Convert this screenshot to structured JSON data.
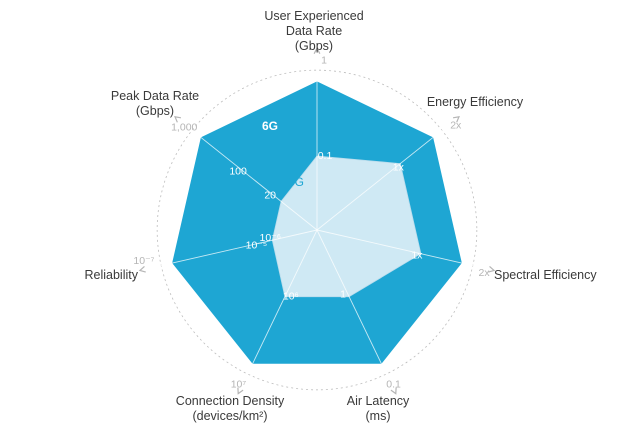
{
  "chart_data": {
    "type": "radar",
    "title": "",
    "axes": [
      {
        "lines": [
          "User Experienced",
          "Data Rate",
          "(Gbps)"
        ],
        "outer_tick": "1",
        "inner_tick": "0.1",
        "value_6g": 1,
        "value_5g": 0.1
      },
      {
        "lines": [
          "Energy Efficiency"
        ],
        "outer_tick": "2x",
        "inner_tick": "1x",
        "value_6g": 2,
        "value_5g": 1
      },
      {
        "lines": [
          "Spectral Efficiency"
        ],
        "outer_tick": "2x",
        "inner_tick": "1x",
        "value_6g": 2,
        "value_5g": 1
      },
      {
        "lines": [
          "Air Latency",
          "(ms)"
        ],
        "outer_tick": "0.1",
        "inner_tick": "1",
        "value_6g": 0.1,
        "value_5g": 1
      },
      {
        "lines": [
          "Connection Density",
          "(devices/km²)"
        ],
        "outer_tick": "10⁷",
        "inner_tick": "10⁶",
        "value_6g": 10000000,
        "value_5g": 1000000
      },
      {
        "lines": [
          "Reliability"
        ],
        "outer_tick": "10⁻⁷",
        "inner_tick": "10⁻⁶",
        "value_6g": "10⁻⁷",
        "value_5g": "10⁻⁵"
      },
      {
        "lines": [
          "Peak Data Rate",
          "(Gbps)"
        ],
        "outer_tick": "1,000",
        "inner_tick": "100",
        "value_6g": 1000,
        "value_5g": 20
      }
    ],
    "extra_ticks": [
      {
        "text": "10⁻⁵",
        "axis": 5
      },
      {
        "text": "20",
        "axis": 6
      }
    ],
    "series": [
      {
        "name": "6G",
        "color": "#1ea6d3",
        "fractions": [
          1,
          1,
          1,
          1,
          1,
          1,
          1
        ]
      },
      {
        "name": "5G",
        "color": "#cfe9f4",
        "fractions": [
          0.5,
          0.72,
          0.72,
          0.5,
          0.5,
          0.31,
          0.31
        ]
      }
    ],
    "grid": true,
    "grid_color": "#bdbdbd",
    "axis_color": "#cfcfcf"
  }
}
